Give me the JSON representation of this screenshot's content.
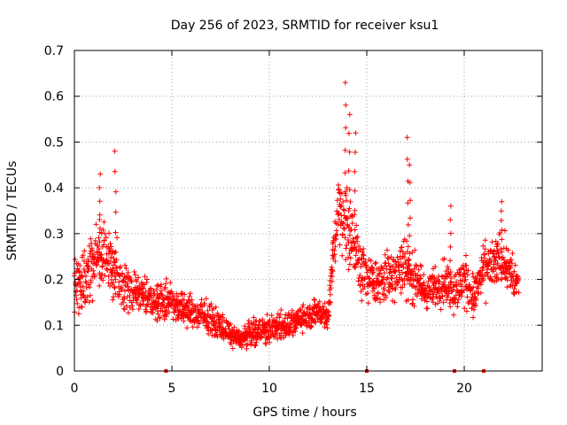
{
  "chart_data": {
    "type": "scatter",
    "title": "Day 256 of 2023, SRMTID for receiver ksu1",
    "xlabel": "GPS time / hours",
    "ylabel": "SRMTID / TECUs",
    "xlim": [
      0,
      24
    ],
    "ylim": [
      0,
      0.7
    ],
    "x_ticks": [
      0,
      5,
      10,
      15,
      20
    ],
    "x_tick_labels": [
      "0",
      "5",
      "10",
      "15",
      "20"
    ],
    "y_ticks": [
      0,
      0.1,
      0.2,
      0.3,
      0.4,
      0.5,
      0.6,
      0.7
    ],
    "y_tick_labels": [
      "0",
      "0.1",
      "0.2",
      "0.3",
      "0.4",
      "0.5",
      "0.6",
      "0.7"
    ],
    "grid": true,
    "marker": "plus",
    "color": "#ff0000",
    "series": [
      {
        "name": "SRMTID",
        "envelope": {
          "x": [
            0,
            0.5,
            1,
            1.5,
            2,
            2.5,
            3,
            3.5,
            4,
            4.5,
            5,
            5.5,
            6,
            6.5,
            7,
            7.5,
            8,
            8.5,
            9,
            9.5,
            10,
            10.5,
            11,
            11.5,
            12,
            12.5,
            13,
            13.5,
            14,
            14.5,
            15,
            15.5,
            16,
            16.5,
            17,
            17.5,
            18,
            18.5,
            19,
            19.5,
            20,
            20.5,
            21,
            21.5,
            22,
            22.5,
            22.8
          ],
          "y_center": [
            0.17,
            0.2,
            0.24,
            0.26,
            0.22,
            0.19,
            0.17,
            0.17,
            0.16,
            0.15,
            0.15,
            0.14,
            0.13,
            0.12,
            0.11,
            0.1,
            0.08,
            0.07,
            0.08,
            0.09,
            0.09,
            0.1,
            0.1,
            0.11,
            0.12,
            0.13,
            0.12,
            0.35,
            0.33,
            0.25,
            0.2,
            0.19,
            0.2,
            0.22,
            0.23,
            0.2,
            0.17,
            0.18,
            0.2,
            0.17,
            0.2,
            0.16,
            0.22,
            0.23,
            0.25,
            0.2,
            0.19
          ],
          "y_spread": [
            0.08,
            0.1,
            0.1,
            0.1,
            0.1,
            0.08,
            0.07,
            0.06,
            0.06,
            0.06,
            0.06,
            0.05,
            0.05,
            0.05,
            0.05,
            0.04,
            0.03,
            0.03,
            0.04,
            0.04,
            0.05,
            0.05,
            0.04,
            0.04,
            0.04,
            0.04,
            0.05,
            0.12,
            0.14,
            0.1,
            0.08,
            0.07,
            0.08,
            0.08,
            0.1,
            0.08,
            0.06,
            0.06,
            0.08,
            0.07,
            0.08,
            0.07,
            0.08,
            0.08,
            0.08,
            0.07,
            0.06
          ]
        },
        "peaks": [
          {
            "x": 1.3,
            "y": 0.43
          },
          {
            "x": 2.1,
            "y": 0.48
          },
          {
            "x": 13.9,
            "y": 0.63
          },
          {
            "x": 14.1,
            "y": 0.56
          },
          {
            "x": 14.4,
            "y": 0.52
          },
          {
            "x": 17.1,
            "y": 0.51
          },
          {
            "x": 17.2,
            "y": 0.45
          },
          {
            "x": 19.3,
            "y": 0.36
          },
          {
            "x": 21.9,
            "y": 0.37
          }
        ]
      }
    ],
    "zero_markers_x": [
      4.7,
      15.0,
      19.5,
      21.0
    ]
  }
}
